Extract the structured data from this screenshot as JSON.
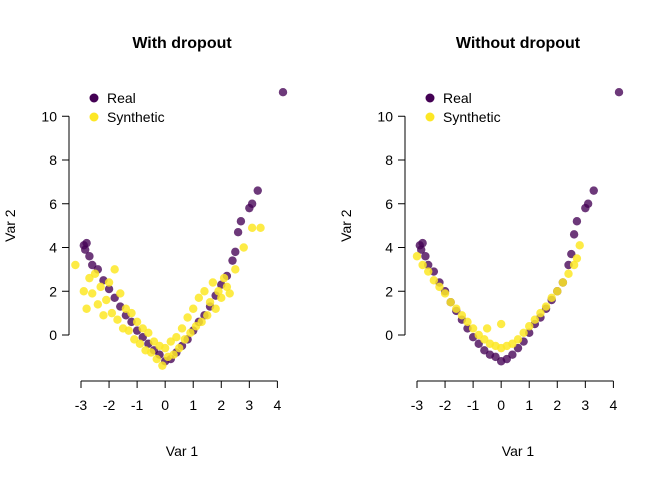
{
  "chart_data": [
    {
      "type": "scatter",
      "title": "With dropout",
      "xlabel": "Var 1",
      "ylabel": "Var 2",
      "xlim": [
        -3,
        4.2
      ],
      "ylim": [
        -1.6,
        11.2
      ],
      "xticks": [
        -3,
        -2,
        -1,
        0,
        1,
        2,
        3,
        4
      ],
      "yticks": [
        0,
        2,
        4,
        6,
        8,
        10
      ],
      "grid": false,
      "legend_position": "top-left",
      "series": [
        {
          "name": "Real",
          "color": "#440154",
          "points": [
            [
              -2.9,
              4.1
            ],
            [
              -2.85,
              3.9
            ],
            [
              -2.8,
              4.2
            ],
            [
              -2.7,
              3.6
            ],
            [
              -2.6,
              3.2
            ],
            [
              -2.4,
              3.0
            ],
            [
              -2.2,
              2.5
            ],
            [
              -2.0,
              2.1
            ],
            [
              -1.8,
              1.7
            ],
            [
              -1.6,
              1.3
            ],
            [
              -1.4,
              0.9
            ],
            [
              -1.2,
              0.6
            ],
            [
              -1.0,
              0.2
            ],
            [
              -0.8,
              -0.1
            ],
            [
              -0.6,
              -0.4
            ],
            [
              -0.4,
              -0.7
            ],
            [
              -0.2,
              -0.9
            ],
            [
              0.0,
              -1.2
            ],
            [
              0.2,
              -1.1
            ],
            [
              0.4,
              -0.8
            ],
            [
              0.6,
              -0.5
            ],
            [
              0.8,
              -0.2
            ],
            [
              1.0,
              0.2
            ],
            [
              1.2,
              0.6
            ],
            [
              1.4,
              0.9
            ],
            [
              1.6,
              1.3
            ],
            [
              1.8,
              1.8
            ],
            [
              2.0,
              2.3
            ],
            [
              2.2,
              2.7
            ],
            [
              2.4,
              3.4
            ],
            [
              2.5,
              3.8
            ],
            [
              2.6,
              4.7
            ],
            [
              2.7,
              5.2
            ],
            [
              3.0,
              5.8
            ],
            [
              3.1,
              6.0
            ],
            [
              3.3,
              6.6
            ],
            [
              4.2,
              11.1
            ]
          ]
        },
        {
          "name": "Synthetic",
          "color": "#fde725",
          "points": [
            [
              -3.2,
              3.2
            ],
            [
              -2.9,
              2.0
            ],
            [
              -2.8,
              1.2
            ],
            [
              -2.7,
              2.6
            ],
            [
              -2.6,
              1.9
            ],
            [
              -2.5,
              2.8
            ],
            [
              -2.4,
              1.4
            ],
            [
              -2.3,
              2.2
            ],
            [
              -2.2,
              0.9
            ],
            [
              -2.1,
              1.6
            ],
            [
              -2.0,
              2.4
            ],
            [
              -1.9,
              1.0
            ],
            [
              -1.8,
              3.0
            ],
            [
              -1.7,
              0.7
            ],
            [
              -1.6,
              1.9
            ],
            [
              -1.5,
              0.3
            ],
            [
              -1.4,
              1.2
            ],
            [
              -1.3,
              0.2
            ],
            [
              -1.2,
              1.0
            ],
            [
              -1.1,
              -0.2
            ],
            [
              -1.0,
              0.6
            ],
            [
              -0.9,
              -0.4
            ],
            [
              -0.8,
              0.3
            ],
            [
              -0.7,
              -0.7
            ],
            [
              -0.6,
              0.1
            ],
            [
              -0.5,
              -0.8
            ],
            [
              -0.4,
              -0.3
            ],
            [
              -0.3,
              -1.1
            ],
            [
              -0.2,
              -0.5
            ],
            [
              -0.1,
              -1.4
            ],
            [
              0.0,
              -0.6
            ],
            [
              0.1,
              -1.0
            ],
            [
              0.2,
              -0.3
            ],
            [
              0.3,
              -0.9
            ],
            [
              0.4,
              -0.1
            ],
            [
              0.5,
              -0.6
            ],
            [
              0.6,
              0.3
            ],
            [
              0.7,
              -0.2
            ],
            [
              0.8,
              0.8
            ],
            [
              0.9,
              0.1
            ],
            [
              1.0,
              1.2
            ],
            [
              1.1,
              0.4
            ],
            [
              1.2,
              1.7
            ],
            [
              1.3,
              0.6
            ],
            [
              1.4,
              2.0
            ],
            [
              1.5,
              0.9
            ],
            [
              1.6,
              1.5
            ],
            [
              1.7,
              2.4
            ],
            [
              1.8,
              1.2
            ],
            [
              1.9,
              2.0
            ],
            [
              2.0,
              1.7
            ],
            [
              2.1,
              2.6
            ],
            [
              2.2,
              2.2
            ],
            [
              2.3,
              1.9
            ],
            [
              2.5,
              3.0
            ],
            [
              2.8,
              4.0
            ],
            [
              3.1,
              4.9
            ],
            [
              3.4,
              4.9
            ]
          ]
        }
      ]
    },
    {
      "type": "scatter",
      "title": "Without dropout",
      "xlabel": "Var 1",
      "ylabel": "Var 2",
      "xlim": [
        -3,
        4.2
      ],
      "ylim": [
        -1.6,
        11.2
      ],
      "xticks": [
        -3,
        -2,
        -1,
        0,
        1,
        2,
        3,
        4
      ],
      "yticks": [
        0,
        2,
        4,
        6,
        8,
        10
      ],
      "grid": false,
      "legend_position": "top-left",
      "series": [
        {
          "name": "Real",
          "color": "#440154",
          "points": [
            [
              -2.9,
              4.1
            ],
            [
              -2.85,
              3.9
            ],
            [
              -2.8,
              4.2
            ],
            [
              -2.7,
              3.6
            ],
            [
              -2.6,
              3.2
            ],
            [
              -2.4,
              2.9
            ],
            [
              -2.2,
              2.4
            ],
            [
              -2.0,
              2.0
            ],
            [
              -1.8,
              1.5
            ],
            [
              -1.6,
              1.1
            ],
            [
              -1.4,
              0.7
            ],
            [
              -1.2,
              0.3
            ],
            [
              -1.0,
              -0.1
            ],
            [
              -0.8,
              -0.4
            ],
            [
              -0.6,
              -0.7
            ],
            [
              -0.4,
              -0.9
            ],
            [
              -0.2,
              -1.0
            ],
            [
              0.0,
              -1.2
            ],
            [
              0.2,
              -1.1
            ],
            [
              0.4,
              -0.9
            ],
            [
              0.6,
              -0.6
            ],
            [
              0.8,
              -0.3
            ],
            [
              1.0,
              0.1
            ],
            [
              1.2,
              0.5
            ],
            [
              1.4,
              0.8
            ],
            [
              1.6,
              1.2
            ],
            [
              1.8,
              1.6
            ],
            [
              2.0,
              2.0
            ],
            [
              2.2,
              2.4
            ],
            [
              2.4,
              3.2
            ],
            [
              2.5,
              3.7
            ],
            [
              2.6,
              4.6
            ],
            [
              2.7,
              5.2
            ],
            [
              3.0,
              5.8
            ],
            [
              3.1,
              6.0
            ],
            [
              3.3,
              6.6
            ],
            [
              4.2,
              11.1
            ]
          ]
        },
        {
          "name": "Synthetic",
          "color": "#fde725",
          "points": [
            [
              -3.0,
              3.6
            ],
            [
              -2.8,
              3.2
            ],
            [
              -2.6,
              2.9
            ],
            [
              -2.4,
              2.5
            ],
            [
              -2.2,
              2.2
            ],
            [
              -2.0,
              1.9
            ],
            [
              -1.8,
              1.5
            ],
            [
              -1.6,
              1.2
            ],
            [
              -1.4,
              0.9
            ],
            [
              -1.2,
              0.6
            ],
            [
              -1.0,
              0.3
            ],
            [
              -0.8,
              0.0
            ],
            [
              -0.6,
              -0.2
            ],
            [
              -0.4,
              -0.4
            ],
            [
              -0.2,
              -0.5
            ],
            [
              0.0,
              -0.6
            ],
            [
              0.2,
              -0.5
            ],
            [
              0.4,
              -0.4
            ],
            [
              0.6,
              -0.2
            ],
            [
              0.8,
              0.1
            ],
            [
              1.0,
              0.4
            ],
            [
              1.2,
              0.7
            ],
            [
              1.4,
              1.0
            ],
            [
              1.6,
              1.3
            ],
            [
              1.8,
              1.7
            ],
            [
              2.0,
              2.0
            ],
            [
              2.2,
              2.4
            ],
            [
              2.4,
              2.8
            ],
            [
              2.6,
              3.2
            ],
            [
              2.7,
              3.5
            ],
            [
              2.8,
              4.1
            ],
            [
              0.0,
              0.5
            ],
            [
              -0.5,
              0.3
            ]
          ]
        }
      ]
    }
  ]
}
